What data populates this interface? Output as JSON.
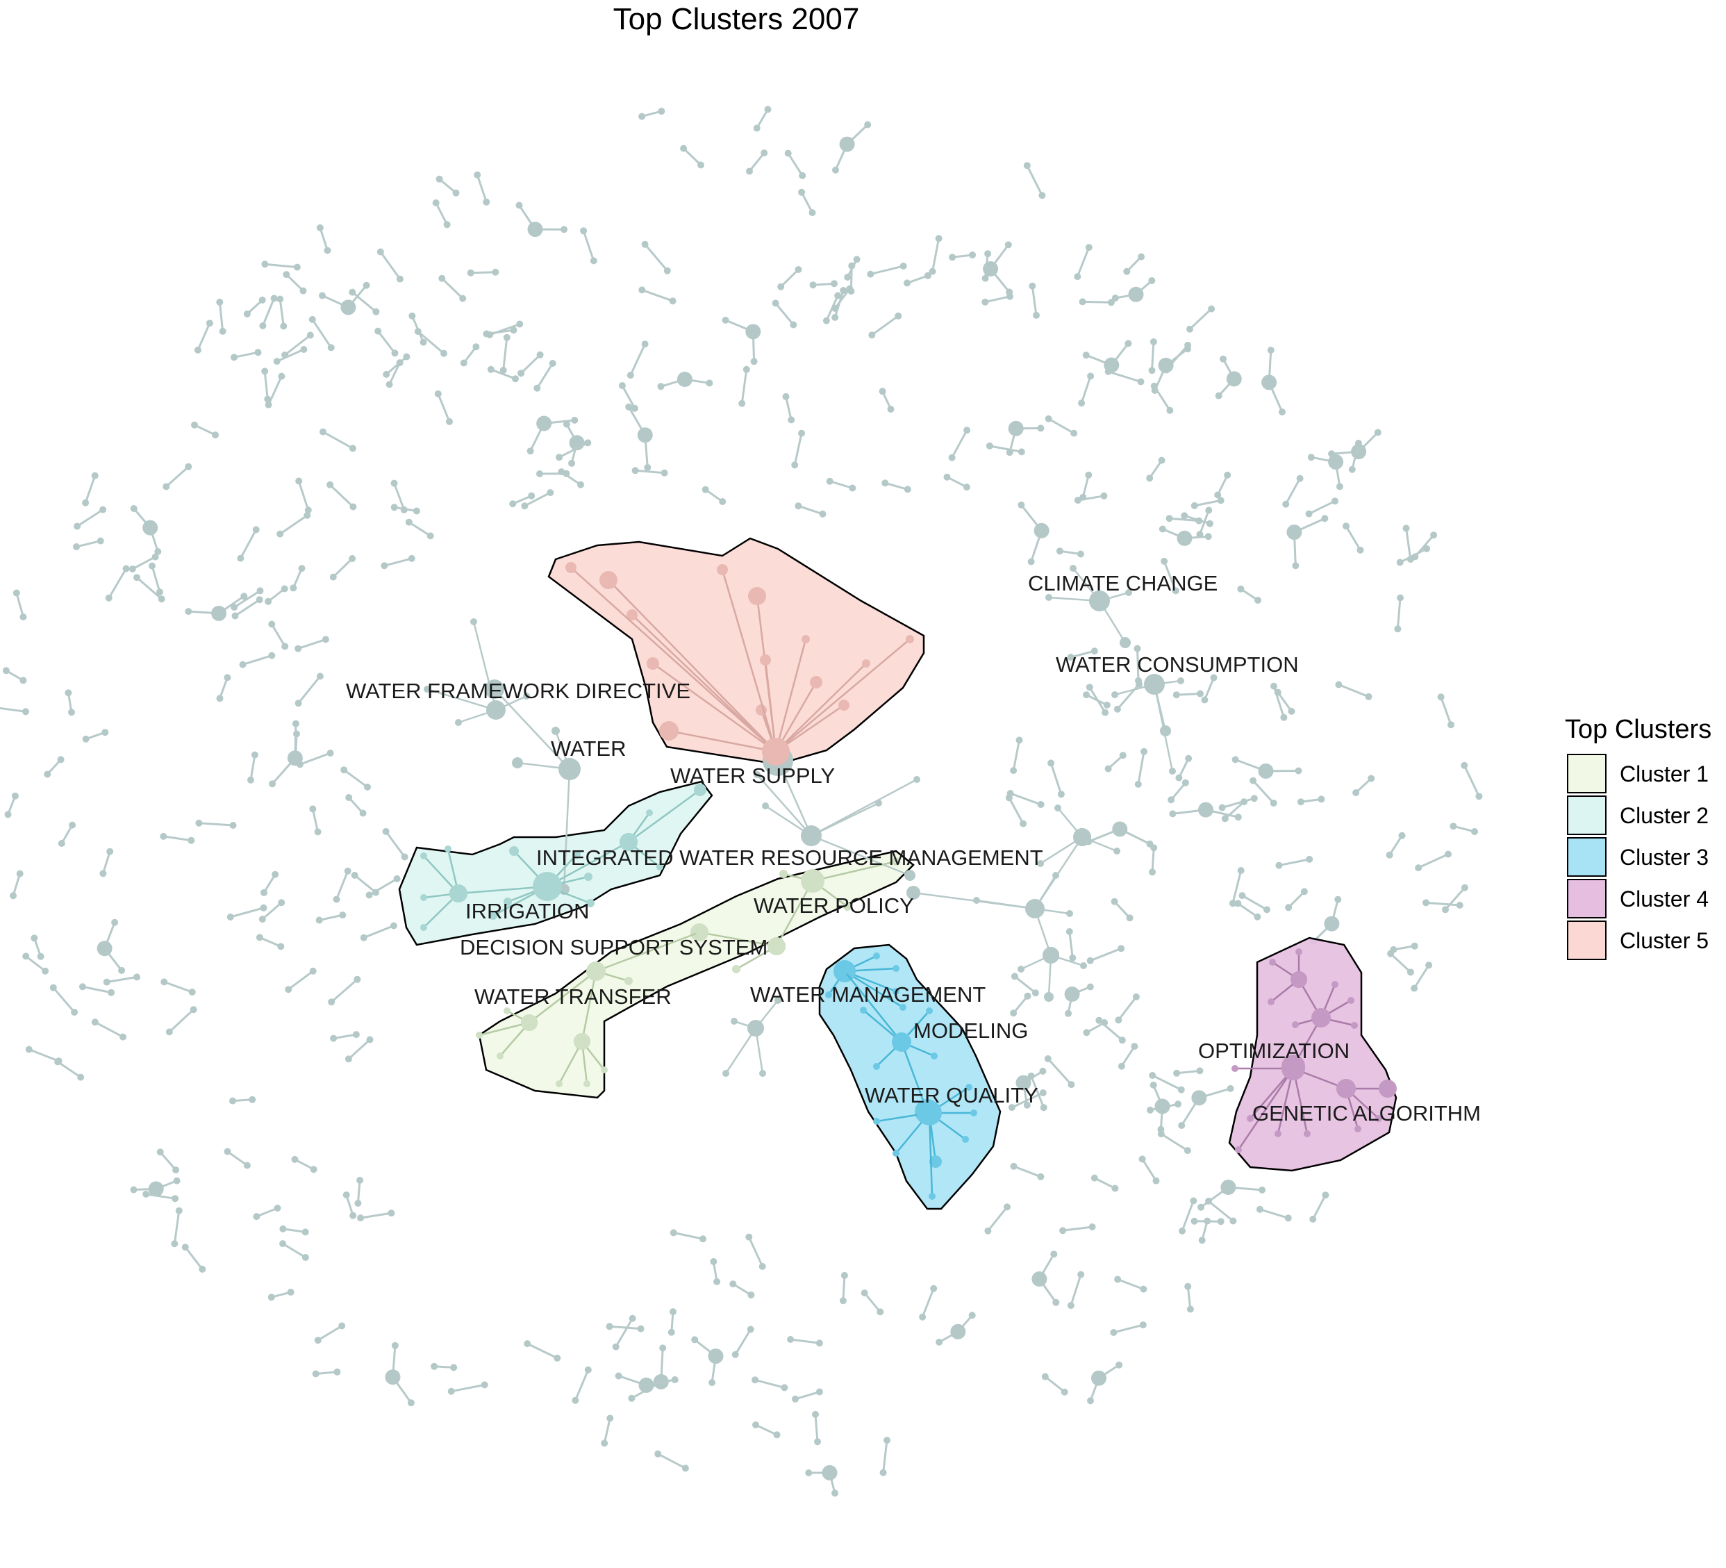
{
  "title": "Top Clusters 2007",
  "legend": {
    "title": "Top Clusters",
    "items": [
      {
        "label": "Cluster 1",
        "color": "#f1f8e6"
      },
      {
        "label": "Cluster 2",
        "color": "#ddf5f2"
      },
      {
        "label": "Cluster 3",
        "color": "#a8e3f5"
      },
      {
        "label": "Cluster 4",
        "color": "#e5bee0"
      },
      {
        "label": "Cluster 5",
        "color": "#fbd8d3"
      }
    ]
  },
  "node_labels": {
    "climate_change": "CLIMATE CHANGE",
    "water_consumption": "WATER CONSUMPTION",
    "water_framework_directive": "WATER FRAMEWORK DIRECTIVE",
    "water": "WATER",
    "water_supply": "WATER SUPPLY",
    "integrated_water_resource_management": "INTEGRATED WATER RESOURCE MANAGEMENT",
    "irrigation": "IRRIGATION",
    "water_policy": "WATER POLICY",
    "decision_support_system": "DECISION SUPPORT SYSTEM",
    "water_transfer": "WATER TRANSFER",
    "water_management": "WATER MANAGEMENT",
    "modeling": "MODELING",
    "water_quality": "WATER QUALITY",
    "optimization": "OPTIMIZATION",
    "genetic_algorithm": "GENETIC ALGORITHM"
  },
  "colors": {
    "background_node": "#b4c8c8",
    "background_edge": "#b7c9c9",
    "cluster1_node": "#cfe0c4",
    "cluster2_node": "#a9d6d2",
    "cluster3_node": "#6cc9e6",
    "cluster4_node": "#c49ac4",
    "cluster5_node": "#e9b8b2"
  }
}
